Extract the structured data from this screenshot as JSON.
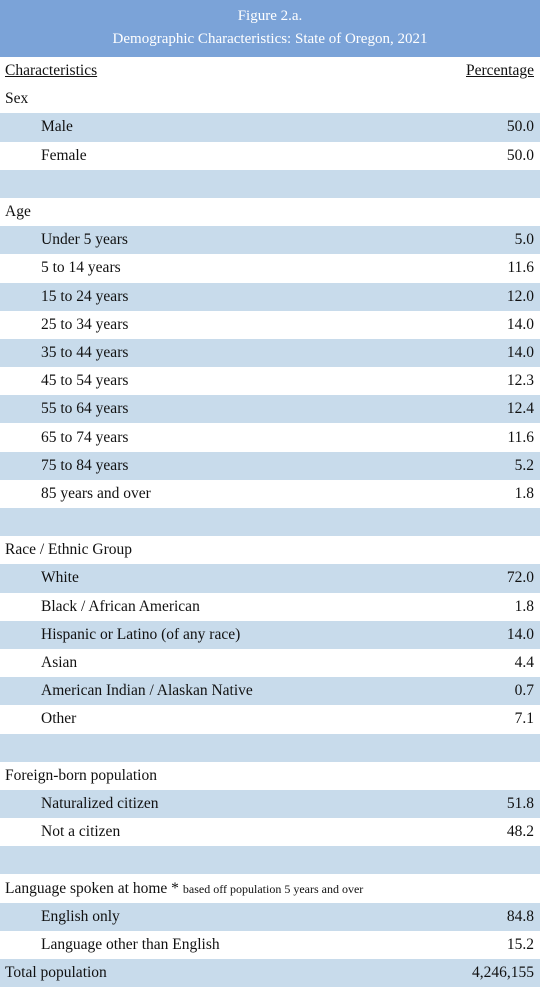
{
  "header": {
    "figure": "Figure 2.a.",
    "title": "Demographic Characteristics: State of Oregon, 2021"
  },
  "columns": {
    "characteristics": "Characteristics",
    "percentage": "Percentage"
  },
  "sections": {
    "sex": {
      "title": "Sex",
      "items": [
        {
          "label": "Male",
          "value": "50.0"
        },
        {
          "label": "Female",
          "value": "50.0"
        }
      ]
    },
    "age": {
      "title": "Age",
      "items": [
        {
          "label": "Under 5 years",
          "value": "5.0"
        },
        {
          "label": "5 to 14 years",
          "value": "11.6"
        },
        {
          "label": "15 to 24 years",
          "value": "12.0"
        },
        {
          "label": "25 to 34 years",
          "value": "14.0"
        },
        {
          "label": "35 to 44 years",
          "value": "14.0"
        },
        {
          "label": "45 to 54 years",
          "value": "12.3"
        },
        {
          "label": "55 to 64 years",
          "value": "12.4"
        },
        {
          "label": "65 to 74 years",
          "value": "11.6"
        },
        {
          "label": "75 to 84 years",
          "value": "5.2"
        },
        {
          "label": "85 years and over",
          "value": "1.8"
        }
      ]
    },
    "race": {
      "title": "Race / Ethnic Group",
      "items": [
        {
          "label": "White",
          "value": "72.0"
        },
        {
          "label": "Black / African American",
          "value": "1.8"
        },
        {
          "label": "Hispanic or Latino (of any race)",
          "value": "14.0"
        },
        {
          "label": "Asian",
          "value": "4.4"
        },
        {
          "label": "American Indian / Alaskan Native",
          "value": "0.7"
        },
        {
          "label": "Other",
          "value": "7.1"
        }
      ]
    },
    "foreign": {
      "title": "Foreign-born population",
      "items": [
        {
          "label": "Naturalized citizen",
          "value": "51.8"
        },
        {
          "label": "Not a citizen",
          "value": "48.2"
        }
      ]
    },
    "language": {
      "title": "Language spoken at home *",
      "note": "based off population 5 years and over",
      "items": [
        {
          "label": "English only",
          "value": "84.8"
        },
        {
          "label": "Language other than English",
          "value": "15.2"
        }
      ]
    }
  },
  "total": {
    "label": "Total population",
    "value": "4,246,155"
  },
  "colors": {
    "header_bg": "#7ba3d8",
    "band_bg": "#c8dbeb"
  }
}
